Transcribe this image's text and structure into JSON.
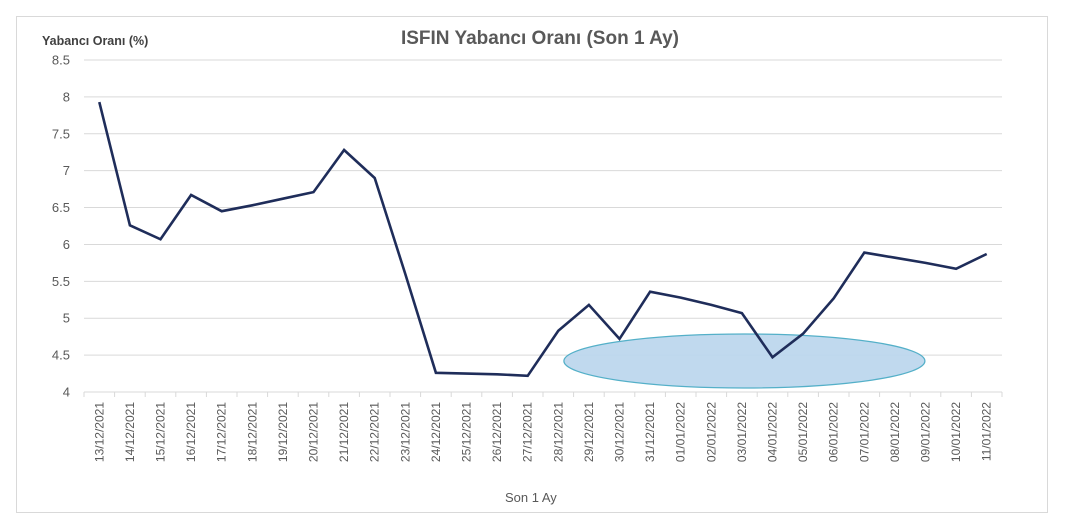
{
  "chart_data": {
    "type": "line",
    "title": "ISFIN Yabancı Oranı (Son 1 Ay)",
    "xlabel": "Son 1 Ay",
    "ylabel": "Yabancı Oranı (%)",
    "ylim": [
      4,
      8.5
    ],
    "yticks": [
      "8.5",
      "8",
      "7.5",
      "7",
      "6.5",
      "6",
      "5.5",
      "5",
      "4.5",
      "4"
    ],
    "grid": true,
    "legend": null,
    "categories": [
      "13/12/2021",
      "14/12/2021",
      "15/12/2021",
      "16/12/2021",
      "17/12/2021",
      "18/12/2021",
      "19/12/2021",
      "20/12/2021",
      "21/12/2021",
      "22/12/2021",
      "23/12/2021",
      "24/12/2021",
      "25/12/2021",
      "26/12/2021",
      "27/12/2021",
      "28/12/2021",
      "29/12/2021",
      "30/12/2021",
      "31/12/2021",
      "01/01/2022",
      "02/01/2022",
      "03/01/2022",
      "04/01/2022",
      "05/01/2022",
      "06/01/2022",
      "07/01/2022",
      "08/01/2022",
      "09/01/2022",
      "10/01/2022",
      "11/01/2022"
    ],
    "series": [
      {
        "name": "ISFIN Yabancı Oranı",
        "color": "#1f2d5a",
        "values": [
          7.93,
          6.26,
          6.07,
          6.67,
          6.45,
          6.53,
          6.62,
          6.71,
          7.28,
          6.9,
          5.6,
          4.26,
          4.25,
          4.24,
          4.22,
          4.83,
          5.18,
          4.72,
          5.36,
          5.28,
          5.18,
          5.07,
          4.47,
          4.79,
          5.27,
          5.89,
          5.82,
          5.75,
          5.67,
          5.87
        ]
      }
    ],
    "annotations": [
      {
        "type": "ellipse",
        "fill": "#bdd7ee",
        "stroke": "#4bacc6",
        "center_category_range": [
          "30/12/2021",
          "08/01/2022"
        ],
        "center_y": 4.42
      }
    ]
  },
  "colors": {
    "line": "#1f2d5a",
    "grid": "#d9d9d9",
    "ellipse_fill": "#bdd7ee",
    "ellipse_stroke": "#4bacc6"
  }
}
